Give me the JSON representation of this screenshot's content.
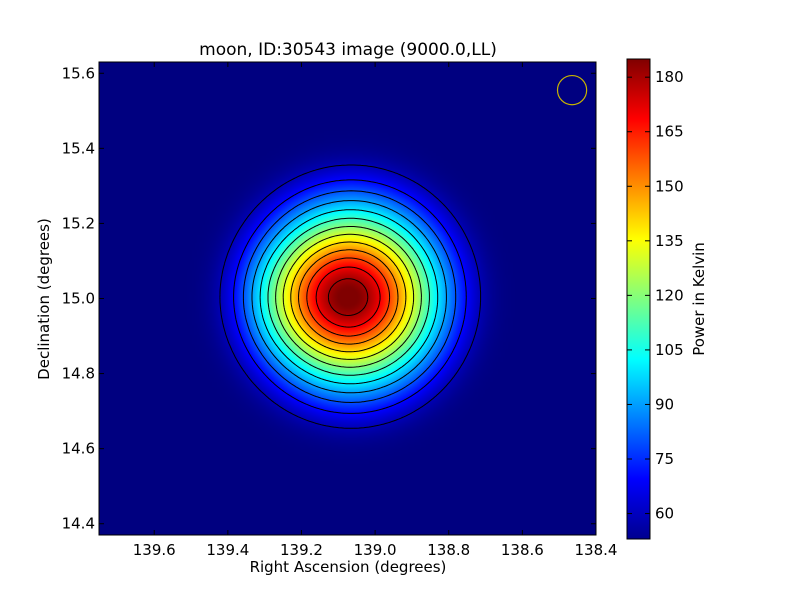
{
  "chart_data": {
    "type": "heatmap",
    "title": "moon, ID:30543 image (9000.0,LL)",
    "xlabel": "Right Ascension (degrees)",
    "ylabel": "Declination (degrees)",
    "colorbar_label": "Power in Kelvin",
    "xlim": [
      139.75,
      138.4
    ],
    "ylim": [
      14.37,
      15.63
    ],
    "x_ticks": [
      139.6,
      139.4,
      139.2,
      139.0,
      138.8,
      138.6,
      138.4
    ],
    "x_tick_labels": [
      "139.6",
      "139.4",
      "139.2",
      "139.0",
      "138.8",
      "138.6",
      "138.4"
    ],
    "y_ticks": [
      15.6,
      15.4,
      15.2,
      15.0,
      14.8,
      14.6,
      14.4
    ],
    "y_tick_labels": [
      "15.6",
      "15.4",
      "15.2",
      "15.0",
      "14.8",
      "14.6",
      "14.4"
    ],
    "colorbar_range": [
      53,
      185
    ],
    "colorbar_ticks": [
      60,
      75,
      90,
      105,
      120,
      135,
      150,
      165,
      180
    ],
    "colorbar_tick_labels": [
      "60",
      "75",
      "90",
      "105",
      "120",
      "135",
      "150",
      "165",
      "180"
    ],
    "colormap": "jet",
    "source": {
      "center_ra": 139.065,
      "center_dec": 15.005,
      "peak_kelvin": 185,
      "background_kelvin": 53,
      "disk_radius_deg": 0.35,
      "beam_sigma_deg": 0.055
    },
    "contour_levels": [
      60,
      70,
      80,
      90,
      100,
      110,
      120,
      130,
      140,
      150,
      160,
      170,
      180
    ],
    "beam_marker": {
      "ra": 138.465,
      "dec": 15.555,
      "radius_deg": 0.055,
      "color": "#c8b400"
    },
    "contour_color": "#000000"
  }
}
